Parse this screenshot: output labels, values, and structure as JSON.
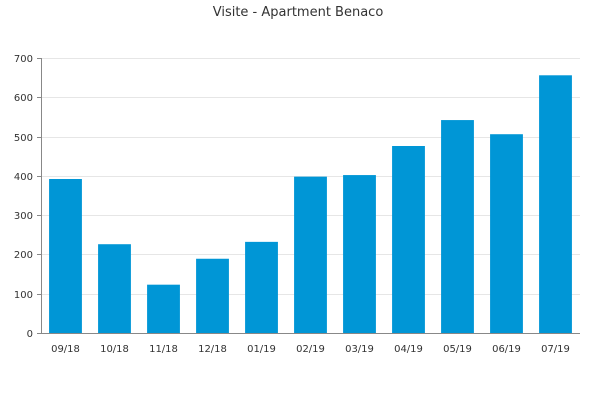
{
  "chart_data": {
    "type": "bar",
    "title": "Visite - Apartment Benaco",
    "xlabel": "",
    "ylabel": "",
    "categories": [
      "09/18",
      "10/18",
      "11/18",
      "12/18",
      "01/19",
      "02/19",
      "03/19",
      "04/19",
      "05/19",
      "06/19",
      "07/19"
    ],
    "values": [
      392,
      226,
      123,
      189,
      232,
      398,
      402,
      476,
      542,
      506,
      656
    ],
    "ylim": [
      0,
      700
    ],
    "yticks": [
      0,
      100,
      200,
      300,
      400,
      500,
      600,
      700
    ],
    "grid": true,
    "legend": "none",
    "bar_color": "#0096d6",
    "grid_color": "#e6e6e6",
    "axis_color": "#888888"
  }
}
